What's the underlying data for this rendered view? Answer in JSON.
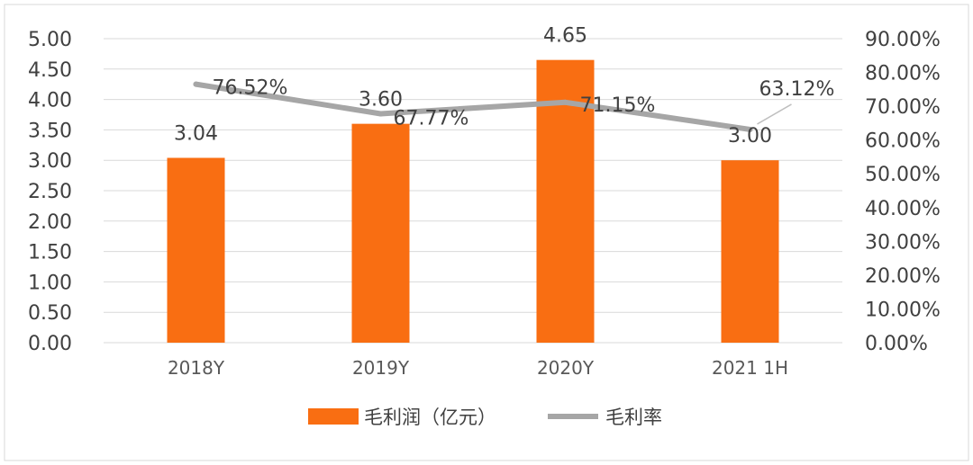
{
  "chart_data": {
    "type": "bar+line",
    "categories": [
      "2018Y",
      "2019Y",
      "2020Y",
      "2021 1H"
    ],
    "series": [
      {
        "name": "毛利润（亿元）",
        "type": "bar",
        "axis": "left",
        "color": "#F96E12",
        "values": [
          3.04,
          3.6,
          4.65,
          3.0
        ],
        "value_labels": [
          "3.04",
          "3.60",
          "4.65",
          "3.00"
        ]
      },
      {
        "name": "毛利率",
        "type": "line",
        "axis": "right",
        "color": "#A6A6A6",
        "values": [
          76.52,
          67.77,
          71.15,
          63.12
        ],
        "value_labels": [
          "76.52%",
          "67.77%",
          "71.15%",
          "63.12%"
        ]
      }
    ],
    "y_left": {
      "range": [
        0,
        5
      ],
      "ticks": [
        "0.00",
        "0.50",
        "1.00",
        "1.50",
        "2.00",
        "2.50",
        "3.00",
        "3.50",
        "4.00",
        "4.50",
        "5.00"
      ]
    },
    "y_right": {
      "range": [
        0,
        90
      ],
      "ticks": [
        "0.00%",
        "10.00%",
        "20.00%",
        "30.00%",
        "40.00%",
        "50.00%",
        "60.00%",
        "70.00%",
        "80.00%",
        "90.00%"
      ]
    },
    "grid": true,
    "legend_position": "bottom"
  }
}
